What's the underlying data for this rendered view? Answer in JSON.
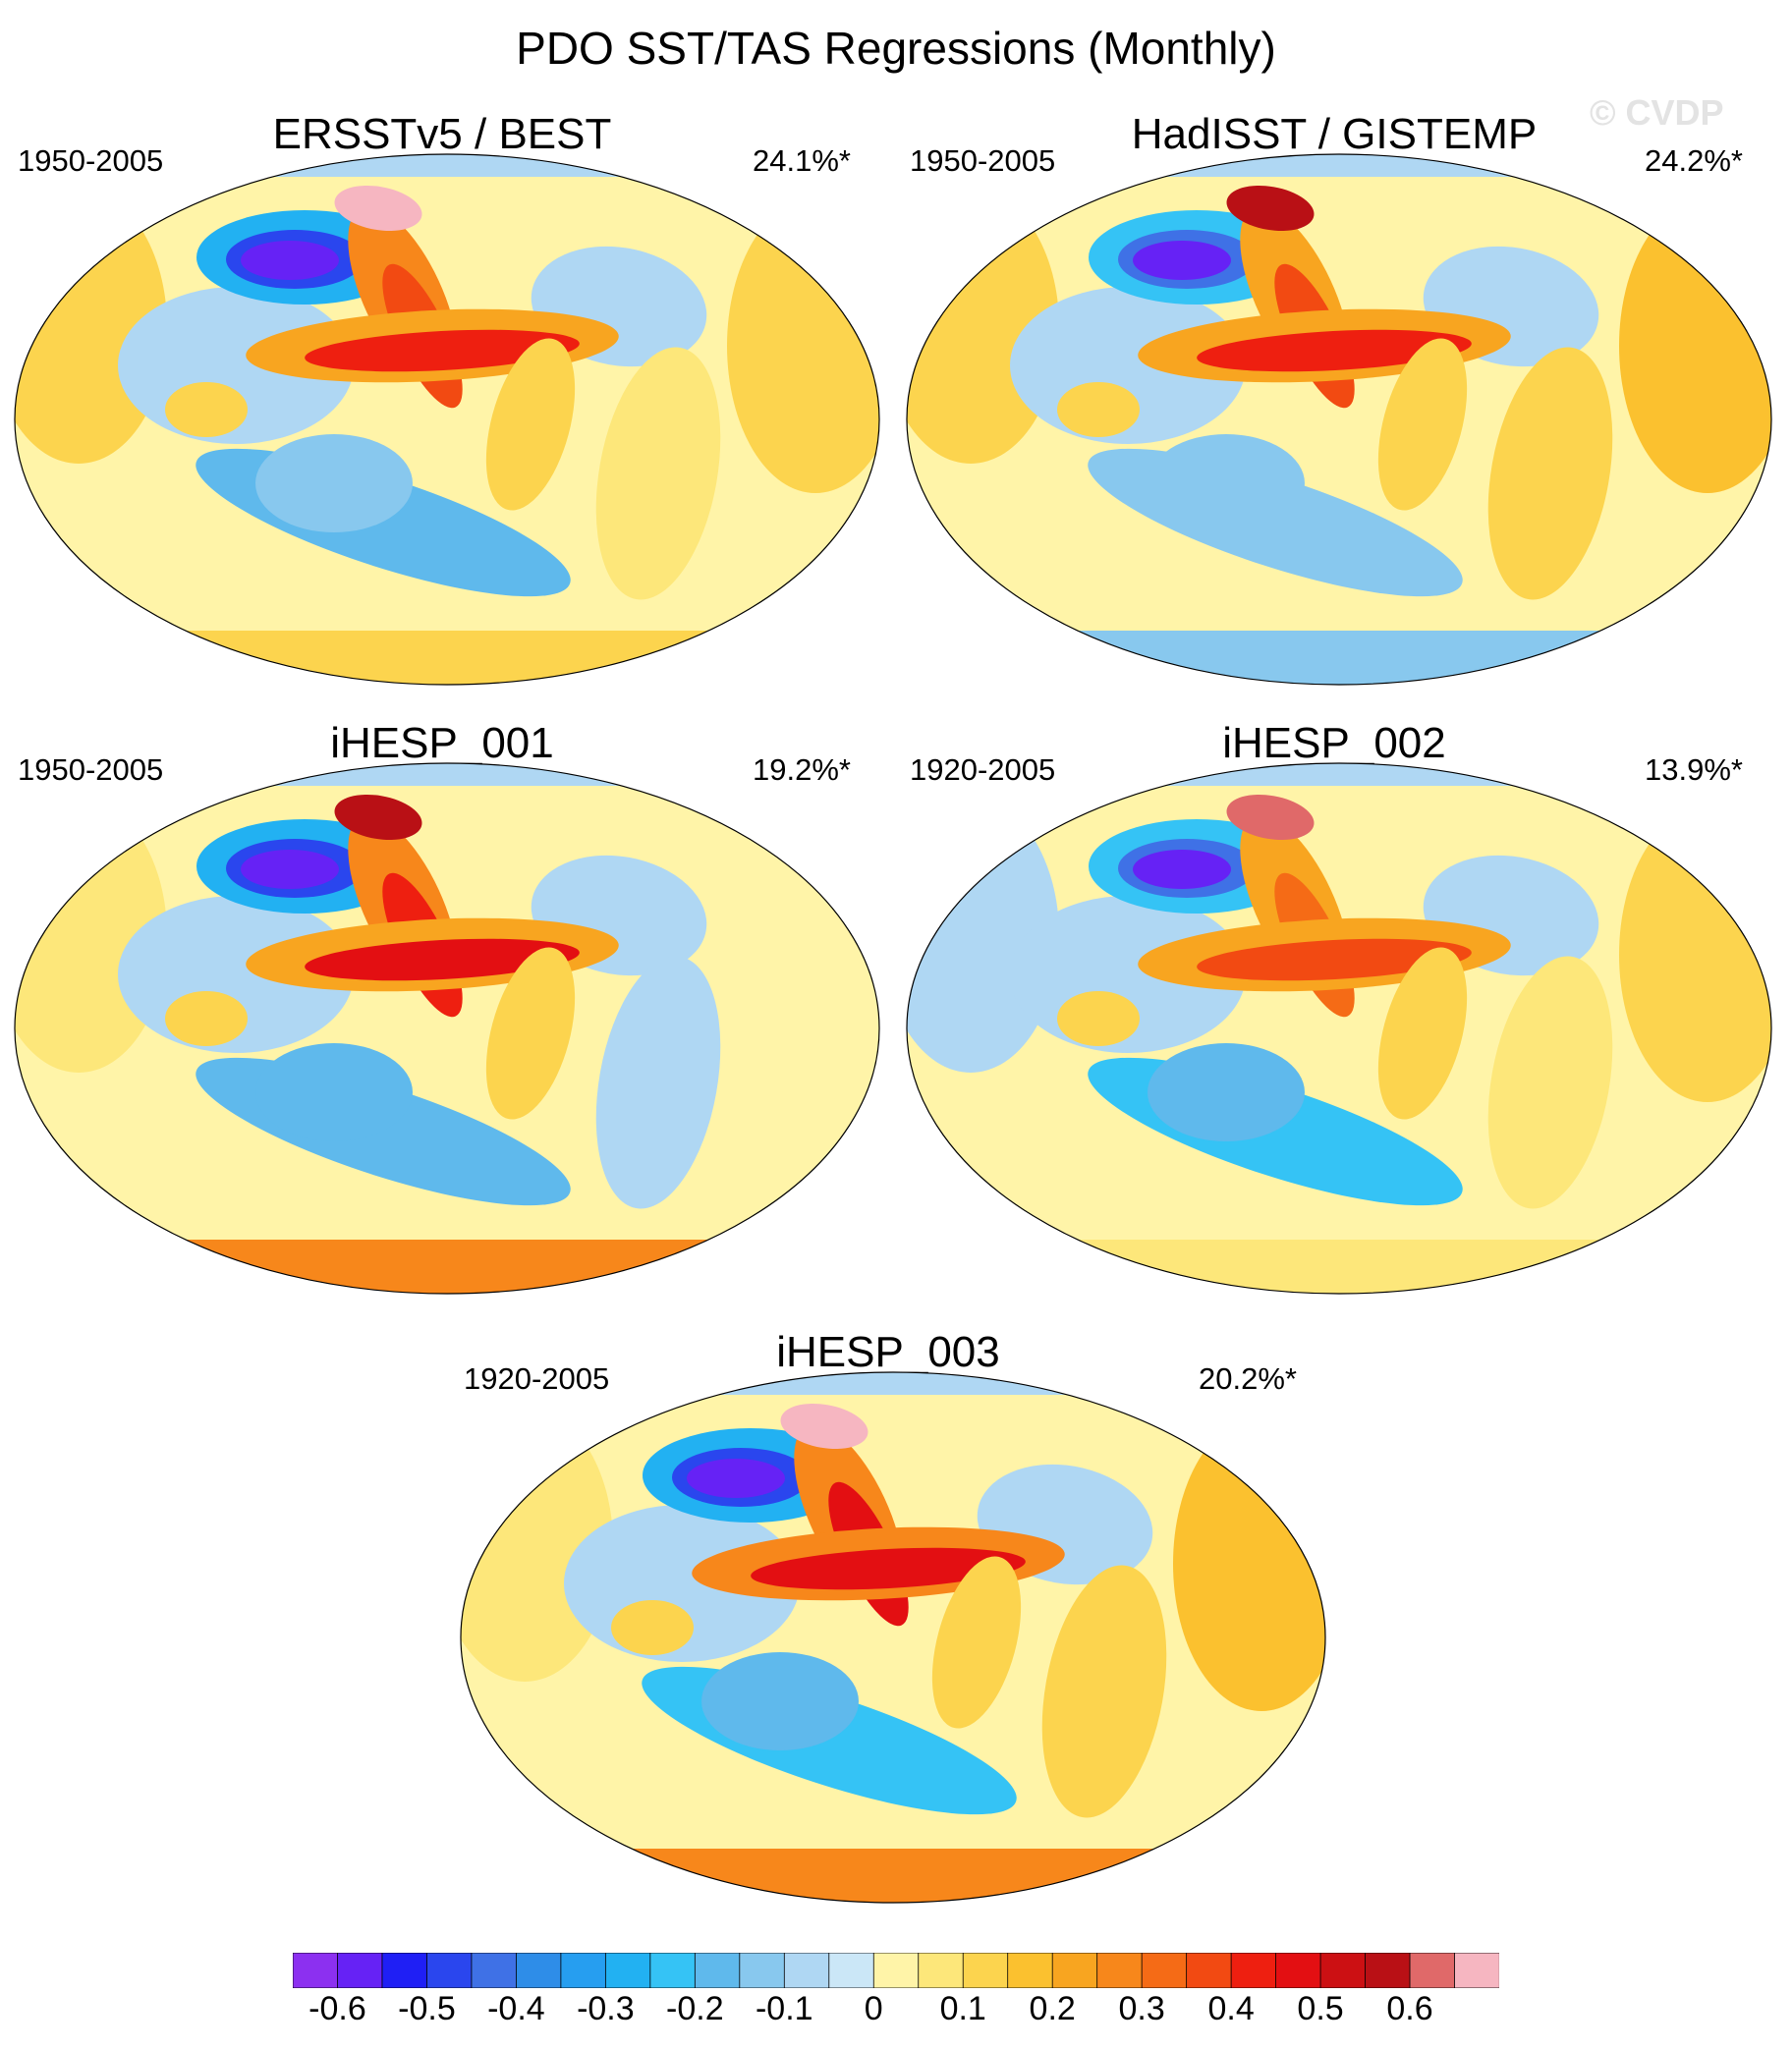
{
  "title": "PDO SST/TAS Regressions (Monthly)",
  "watermark": "© CVDP",
  "panels": [
    {
      "title": "ERSSTv5 / BEST",
      "period": "1950-2005",
      "pct": "24.1%*",
      "pattern": {
        "npac": -0.6,
        "tropics": 0.42,
        "alaska": 0.65,
        "sp": -0.18,
        "ant": 0.12,
        "land": 0.1,
        "atl": 0.08
      }
    },
    {
      "title": "HadISST / GISTEMP",
      "period": "1950-2005",
      "pct": "24.2%*",
      "pattern": {
        "npac": -0.55,
        "tropics": 0.4,
        "alaska": 0.55,
        "sp": -0.15,
        "ant": -0.12,
        "land": 0.12,
        "atl": 0.1
      }
    },
    {
      "title": "iHESP_001",
      "period": "1950-2005",
      "pct": "19.2%*",
      "pattern": {
        "npac": -0.6,
        "tropics": 0.45,
        "alaska": 0.55,
        "sp": -0.2,
        "ant": 0.25,
        "land": 0.05,
        "atl": -0.05
      }
    },
    {
      "title": "iHESP_002",
      "period": "1920-2005",
      "pct": "13.9%*",
      "pattern": {
        "npac": -0.55,
        "tropics": 0.38,
        "alaska": 0.6,
        "sp": -0.22,
        "ant": 0.08,
        "land": -0.05,
        "atl": 0.05
      }
    },
    {
      "title": "iHESP_003",
      "period": "1920-2005",
      "pct": "20.2%*",
      "pattern": {
        "npac": -0.6,
        "tropics": 0.5,
        "alaska": 0.65,
        "sp": -0.25,
        "ant": 0.3,
        "land": 0.08,
        "atl": 0.1
      }
    }
  ],
  "colorbar": {
    "colors": [
      "#8c30f0",
      "#6622f5",
      "#1f1ff5",
      "#2a46ee",
      "#3f71e6",
      "#2e8de8",
      "#269ef0",
      "#22b1f2",
      "#35c3f5",
      "#5fb9ec",
      "#88c8ee",
      "#afd7f3",
      "#cbe7f7",
      "#fff4a8",
      "#fde77a",
      "#fcd44e",
      "#fbc12f",
      "#f8a520",
      "#f7871b",
      "#f56b16",
      "#f24a12",
      "#ee1f10",
      "#e30f12",
      "#cc1013",
      "#b91015",
      "#e06969",
      "#f6b6c1"
    ],
    "ticks": [
      "-0.6",
      "-0.5",
      "-0.4",
      "-0.3",
      "-0.2",
      "-0.1",
      "0",
      "0.1",
      "0.2",
      "0.3",
      "0.4",
      "0.5",
      "0.6"
    ],
    "tick_values": [
      -0.6,
      -0.5,
      -0.4,
      -0.3,
      -0.2,
      -0.1,
      0,
      0.1,
      0.2,
      0.3,
      0.4,
      0.5,
      0.6
    ]
  }
}
